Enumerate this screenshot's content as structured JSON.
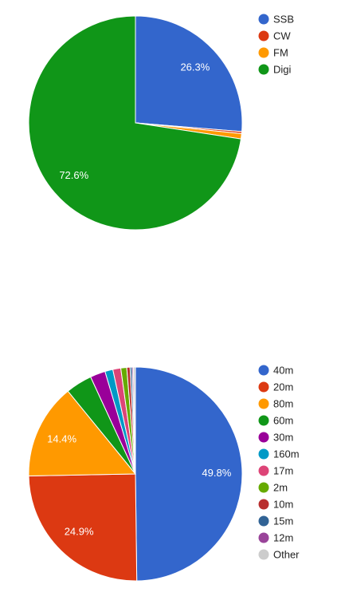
{
  "chart_data": [
    {
      "type": "pie",
      "categories": [
        "SSB",
        "CW",
        "FM",
        "Digi"
      ],
      "values": [
        26.3,
        0.3,
        0.8,
        72.6
      ],
      "value_labels": [
        "26.3%",
        null,
        null,
        "72.6%"
      ],
      "colors": [
        "#3366cc",
        "#dc3912",
        "#ff9900",
        "#109618"
      ],
      "legend": "right"
    },
    {
      "type": "pie",
      "categories": [
        "40m",
        "20m",
        "80m",
        "60m",
        "30m",
        "160m",
        "17m",
        "2m",
        "10m",
        "15m",
        "12m",
        "Other"
      ],
      "values": [
        49.8,
        24.9,
        14.4,
        4.0,
        2.3,
        1.2,
        1.2,
        0.9,
        0.5,
        0.3,
        0.2,
        0.3
      ],
      "value_labels": [
        "49.8%",
        "24.9%",
        "14.4%",
        null,
        null,
        null,
        null,
        null,
        null,
        null,
        null,
        null
      ],
      "colors": [
        "#3366cc",
        "#dc3912",
        "#ff9900",
        "#109618",
        "#990099",
        "#0099c6",
        "#dd4477",
        "#66aa00",
        "#b82e2e",
        "#316395",
        "#994499",
        "#cccccc"
      ],
      "legend": "right"
    }
  ]
}
